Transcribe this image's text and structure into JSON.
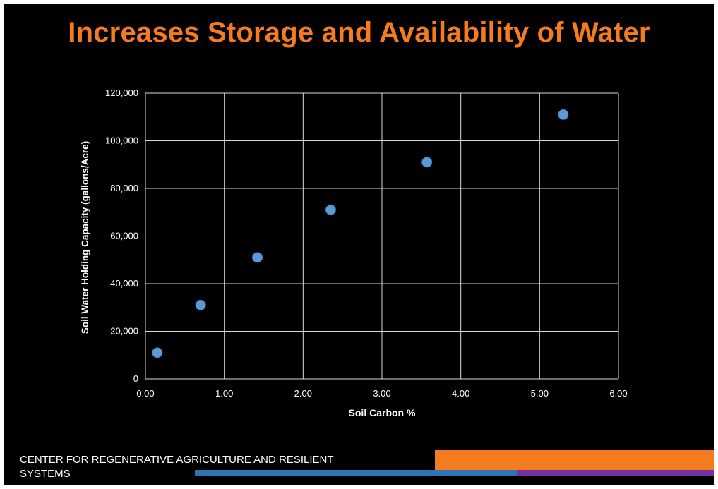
{
  "slide_title": "Increases Storage and Availability of Water",
  "footer_text": "CENTER FOR REGENERATIVE AGRICULTURE AND RESILIENT SYSTEMS",
  "colors": {
    "background": "#000000",
    "title": "#f47b20",
    "marker": "#5b9bd5",
    "grid": "#d9d9d9",
    "text": "#ffffff",
    "accent_orange": "#f47b20",
    "accent_blue": "#2e75b6",
    "accent_purple": "#7030a0"
  },
  "chart_data": {
    "type": "scatter",
    "title": "",
    "xlabel": "Soil Carbon %",
    "ylabel": "Soil Water Holding Capacity (gallons/Acre)",
    "xlim": [
      0,
      6
    ],
    "ylim": [
      0,
      120000
    ],
    "x_ticks": [
      "0.00",
      "1.00",
      "2.00",
      "3.00",
      "4.00",
      "5.00",
      "6.00"
    ],
    "y_ticks": [
      "0",
      "20,000",
      "40,000",
      "60,000",
      "80,000",
      "100,000",
      "120,000"
    ],
    "grid": true,
    "legend": "none",
    "series": [
      {
        "name": "Soil Water Holding Capacity",
        "x": [
          0.15,
          0.7,
          1.42,
          2.35,
          3.57,
          5.3
        ],
        "y": [
          11000,
          31000,
          51000,
          71000,
          91000,
          111000
        ]
      }
    ]
  }
}
